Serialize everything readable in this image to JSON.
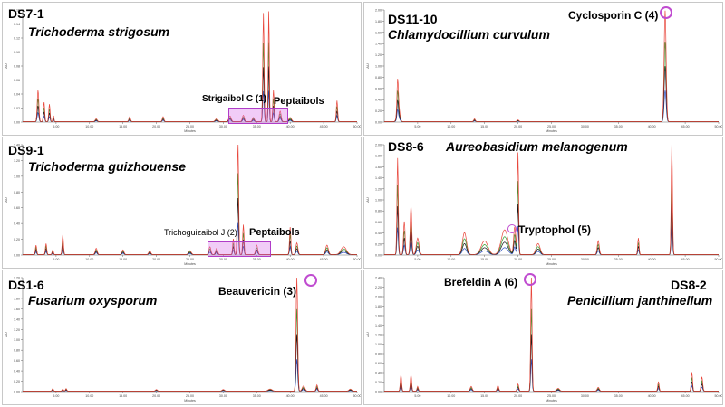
{
  "chart_data": [
    {
      "type": "line",
      "title": "DS7-1",
      "species": "Trichoderma strigosum",
      "xlabel": "Minutes",
      "ylabel": "AU",
      "xlim": [
        0,
        50
      ],
      "ylim": [
        0,
        0.16
      ],
      "x_ticks": [
        "5.00",
        "10.00",
        "15.00",
        "20.00",
        "25.00",
        "30.00",
        "35.00",
        "40.00",
        "45.00",
        "50.00"
      ],
      "y_ticks": [
        "0.00",
        "0.02",
        "0.04",
        "0.06",
        "0.08",
        "0.10",
        "0.12",
        "0.14",
        "0.16"
      ],
      "series_colors": [
        "#e8473c",
        "#2c9a2c",
        "#2c4fc4",
        "#1a1a1a"
      ],
      "peaks": [
        [
          2.3,
          0.045,
          0.12
        ],
        [
          3.2,
          0.028,
          0.1
        ],
        [
          4.0,
          0.025,
          0.1
        ],
        [
          4.6,
          0.009,
          0.08
        ],
        [
          11.0,
          0.004,
          0.15
        ],
        [
          16.0,
          0.007,
          0.12
        ],
        [
          21.0,
          0.007,
          0.12
        ],
        [
          29.0,
          0.004,
          0.2
        ],
        [
          31.0,
          0.008,
          0.18
        ],
        [
          33.0,
          0.009,
          0.15
        ],
        [
          34.5,
          0.006,
          0.15
        ],
        [
          36.0,
          0.155,
          0.1
        ],
        [
          36.8,
          0.16,
          0.08
        ],
        [
          37.5,
          0.045,
          0.1
        ],
        [
          38.5,
          0.015,
          0.15
        ],
        [
          40.0,
          0.006,
          0.2
        ],
        [
          47.0,
          0.03,
          0.1
        ]
      ],
      "annotations": [
        {
          "text": "Strigaibol C (1)"
        },
        {
          "text": "Peptaibols"
        }
      ]
    },
    {
      "type": "line",
      "title": "DS11-10",
      "species": "Chlamydocillium curvulum",
      "xlabel": "Minutes",
      "ylabel": "AU",
      "xlim": [
        0,
        50
      ],
      "ylim": [
        0,
        2.0
      ],
      "x_ticks": [
        "5.00",
        "10.00",
        "15.00",
        "20.00",
        "25.00",
        "30.00",
        "35.00",
        "40.00",
        "45.00",
        "50.00"
      ],
      "y_ticks": [
        "0.00",
        "0.20",
        "0.40",
        "0.60",
        "0.80",
        "1.00",
        "1.20",
        "1.40",
        "1.60",
        "1.80",
        "2.00"
      ],
      "series_colors": [
        "#e8473c",
        "#2c9a2c",
        "#2c4fc4",
        "#1a1a1a"
      ],
      "peaks": [
        [
          2.0,
          0.5,
          0.1
        ],
        [
          2.1,
          0.3,
          0.2
        ],
        [
          13.5,
          0.05,
          0.12
        ],
        [
          20.0,
          0.03,
          0.15
        ],
        [
          42.0,
          1.98,
          0.15
        ]
      ],
      "annotations": [
        {
          "text": "Cyclosporin C (4)"
        }
      ]
    },
    {
      "type": "line",
      "title": "DS9-1",
      "species": "Trichoderma guizhouense",
      "xlabel": "Minutes",
      "ylabel": "AU",
      "xlim": [
        0,
        50
      ],
      "ylim": [
        0,
        1.4
      ],
      "x_ticks": [
        "5.00",
        "10.00",
        "15.00",
        "20.00",
        "25.00",
        "30.00",
        "35.00",
        "40.00",
        "45.00",
        "50.00"
      ],
      "y_ticks": [
        "0.00",
        "0.20",
        "0.40",
        "0.60",
        "0.80",
        "1.00",
        "1.20",
        "1.40"
      ],
      "series_colors": [
        "#e8473c",
        "#2c9a2c",
        "#2c4fc4",
        "#1a1a1a"
      ],
      "peaks": [
        [
          2.0,
          0.12,
          0.1
        ],
        [
          3.5,
          0.14,
          0.1
        ],
        [
          4.5,
          0.06,
          0.1
        ],
        [
          6.0,
          0.25,
          0.1
        ],
        [
          11.0,
          0.08,
          0.15
        ],
        [
          15.0,
          0.06,
          0.15
        ],
        [
          19.0,
          0.05,
          0.15
        ],
        [
          25.0,
          0.05,
          0.2
        ],
        [
          28.0,
          0.1,
          0.15
        ],
        [
          29.0,
          0.08,
          0.15
        ],
        [
          31.5,
          0.2,
          0.1
        ],
        [
          32.2,
          1.45,
          0.1
        ],
        [
          33.0,
          0.38,
          0.1
        ],
        [
          35.0,
          0.12,
          0.15
        ],
        [
          40.0,
          0.35,
          0.1
        ],
        [
          41.0,
          0.15,
          0.15
        ],
        [
          45.5,
          0.12,
          0.2
        ],
        [
          48.0,
          0.1,
          0.4
        ]
      ],
      "annotations": [
        {
          "text": "Trichoguizaibol J (2)"
        },
        {
          "text": "Peptaibols"
        }
      ]
    },
    {
      "type": "line",
      "title": "DS8-6",
      "species": "Aureobasidium melanogenum",
      "xlabel": "Minutes",
      "ylabel": "AU",
      "xlim": [
        0,
        50
      ],
      "ylim": [
        0,
        2.0
      ],
      "x_ticks": [
        "5.00",
        "10.00",
        "15.00",
        "20.00",
        "25.00",
        "30.00",
        "35.00",
        "40.00",
        "45.00",
        "50.00"
      ],
      "y_ticks": [
        "0.00",
        "0.20",
        "0.40",
        "0.60",
        "0.80",
        "1.00",
        "1.20",
        "1.40",
        "1.60",
        "1.80",
        "2.00"
      ],
      "series_colors": [
        "#e8473c",
        "#2c9a2c",
        "#2c4fc4",
        "#1a1a1a"
      ],
      "peaks": [
        [
          2.0,
          1.75,
          0.1
        ],
        [
          3.0,
          0.6,
          0.12
        ],
        [
          4.0,
          0.9,
          0.12
        ],
        [
          5.0,
          0.3,
          0.2
        ],
        [
          12.0,
          0.4,
          0.3
        ],
        [
          15.0,
          0.25,
          0.5
        ],
        [
          18.0,
          0.45,
          0.5
        ],
        [
          19.5,
          0.5,
          0.15
        ],
        [
          20.0,
          1.85,
          0.1
        ],
        [
          23.0,
          0.2,
          0.3
        ],
        [
          32.0,
          0.25,
          0.15
        ],
        [
          38.0,
          0.3,
          0.1
        ],
        [
          43.0,
          2.0,
          0.1
        ]
      ],
      "annotations": [
        {
          "text": "Tryptophol (5)"
        }
      ]
    },
    {
      "type": "line",
      "title": "DS1-6",
      "species": "Fusarium oxysporum",
      "xlabel": "Minutes",
      "ylabel": "AU",
      "xlim": [
        0,
        50
      ],
      "ylim": [
        0,
        2.2
      ],
      "x_ticks": [
        "5.00",
        "10.00",
        "15.00",
        "20.00",
        "25.00",
        "30.00",
        "35.00",
        "40.00",
        "45.00",
        "50.00"
      ],
      "y_ticks": [
        "0.00",
        "0.20",
        "0.40",
        "0.60",
        "0.80",
        "1.00",
        "1.20",
        "1.40",
        "1.60",
        "1.80",
        "2.00",
        "2.20"
      ],
      "series_colors": [
        "#e8473c",
        "#2c9a2c",
        "#2c4fc4",
        "#1a1a1a"
      ],
      "peaks": [
        [
          4.5,
          0.05,
          0.1
        ],
        [
          6.0,
          0.04,
          0.1
        ],
        [
          6.5,
          0.05,
          0.1
        ],
        [
          20.0,
          0.03,
          0.15
        ],
        [
          30.0,
          0.03,
          0.2
        ],
        [
          37.0,
          0.04,
          0.3
        ],
        [
          41.0,
          2.2,
          0.12
        ],
        [
          42.0,
          0.1,
          0.2
        ],
        [
          44.0,
          0.12,
          0.12
        ],
        [
          49.0,
          0.04,
          0.2
        ]
      ],
      "annotations": [
        {
          "text": "Beauvericin (3)"
        }
      ]
    },
    {
      "type": "line",
      "title": "DS8-2",
      "species": "Penicillium janthinellum",
      "xlabel": "Minutes",
      "ylabel": "AU",
      "xlim": [
        0,
        50
      ],
      "ylim": [
        0,
        2.4
      ],
      "x_ticks": [
        "5.00",
        "10.00",
        "15.00",
        "20.00",
        "25.00",
        "30.00",
        "35.00",
        "40.00",
        "45.00",
        "50.00"
      ],
      "y_ticks": [
        "0.00",
        "0.20",
        "0.40",
        "0.60",
        "0.80",
        "1.00",
        "1.20",
        "1.40",
        "1.60",
        "1.80",
        "2.00",
        "2.20",
        "2.40"
      ],
      "series_colors": [
        "#e8473c",
        "#2c9a2c",
        "#2c4fc4",
        "#1a1a1a"
      ],
      "peaks": [
        [
          2.5,
          0.35,
          0.1
        ],
        [
          4.0,
          0.35,
          0.1
        ],
        [
          5.0,
          0.1,
          0.1
        ],
        [
          13.0,
          0.1,
          0.15
        ],
        [
          17.0,
          0.12,
          0.12
        ],
        [
          20.0,
          0.15,
          0.12
        ],
        [
          22.0,
          2.4,
          0.1
        ],
        [
          26.0,
          0.06,
          0.2
        ],
        [
          32.0,
          0.08,
          0.15
        ],
        [
          41.0,
          0.2,
          0.1
        ],
        [
          46.0,
          0.4,
          0.1
        ],
        [
          47.5,
          0.3,
          0.12
        ]
      ],
      "annotations": [
        {
          "text": "Brefeldin A (6)"
        }
      ]
    }
  ]
}
